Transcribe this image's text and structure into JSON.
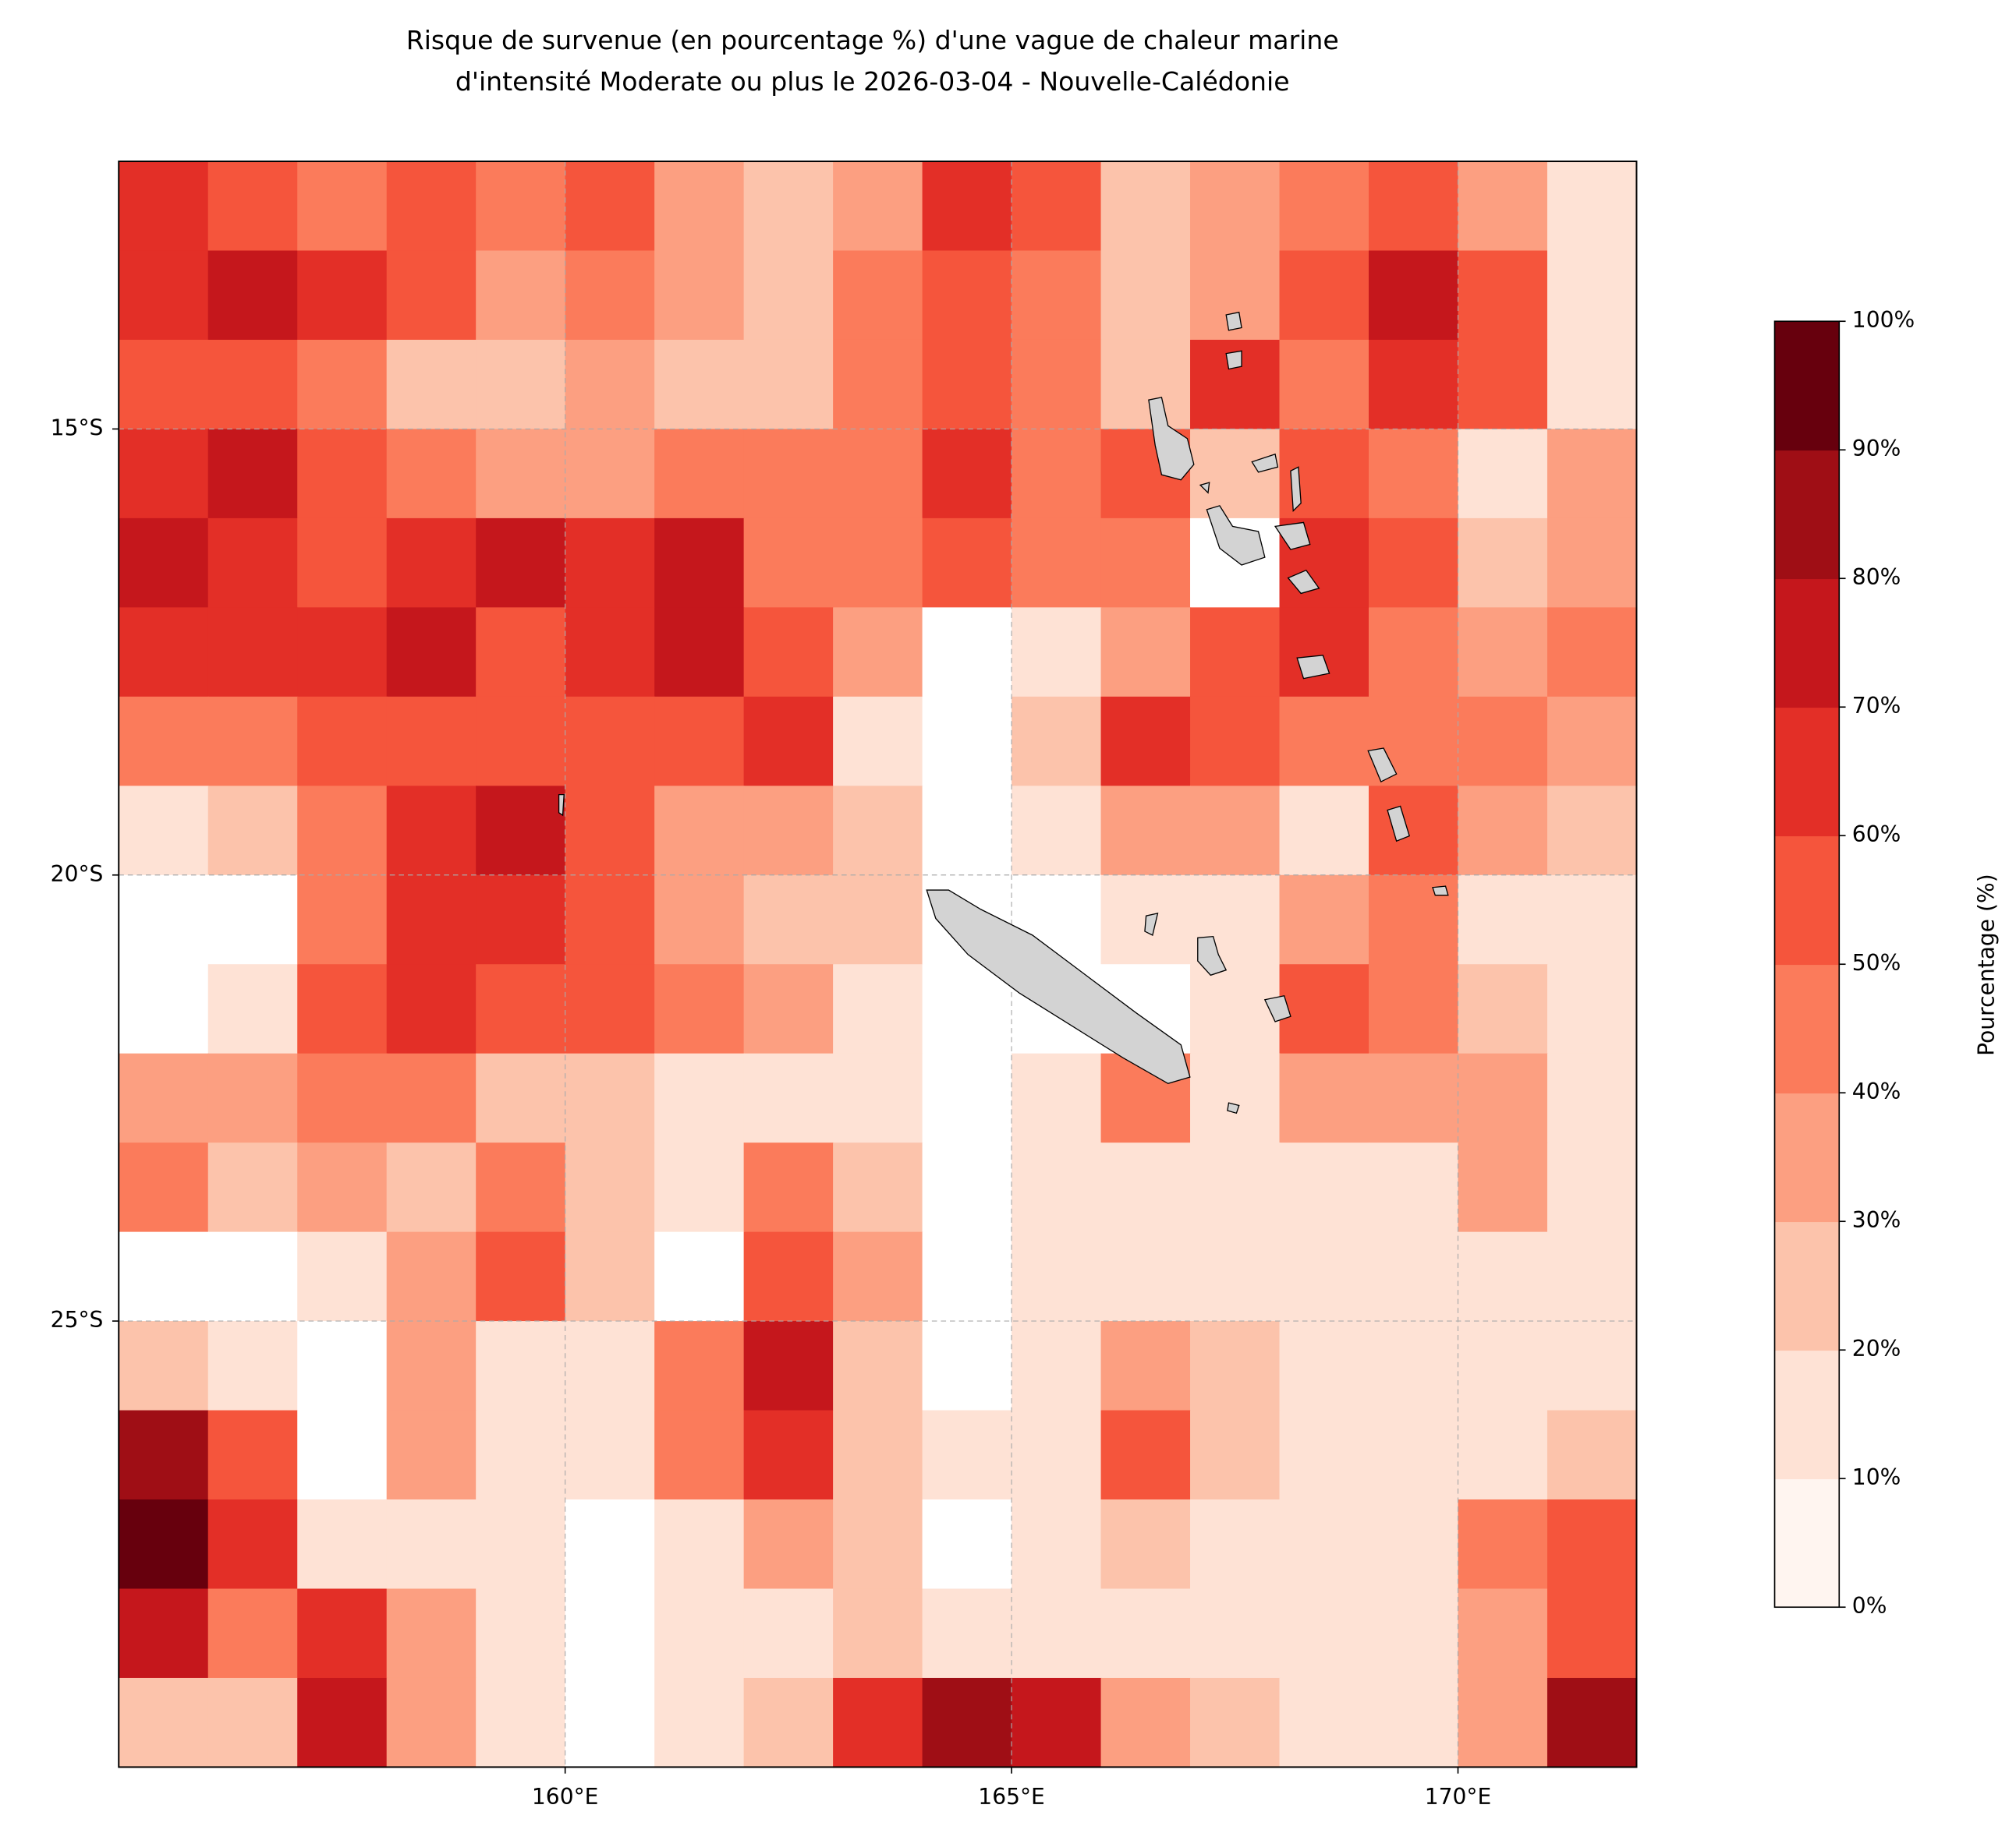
{
  "chart_data": {
    "type": "heatmap",
    "title": [
      "Risque de survenue (en pourcentage %) d'une vague de chaleur marine",
      "d'intensité Moderate ou plus le 2026-03-04 - Nouvelle-Calédonie"
    ],
    "xlim": [
      155,
      172
    ],
    "ylim": [
      -30,
      -12
    ],
    "xticks": [
      {
        "value": 160,
        "label": "160°E"
      },
      {
        "value": 165,
        "label": "165°E"
      },
      {
        "value": 170,
        "label": "170°E"
      }
    ],
    "yticks": [
      {
        "value": -15,
        "label": "15°S"
      },
      {
        "value": -20,
        "label": "20°S"
      },
      {
        "value": -25,
        "label": "25°S"
      }
    ],
    "grid": true,
    "values": [
      [
        60,
        50,
        40,
        50,
        40,
        50,
        30,
        20,
        30,
        60,
        50,
        20,
        30,
        40,
        50,
        30,
        10
      ],
      [
        60,
        70,
        60,
        50,
        30,
        40,
        30,
        20,
        40,
        50,
        40,
        20,
        30,
        50,
        70,
        50,
        10
      ],
      [
        50,
        50,
        40,
        20,
        20,
        30,
        20,
        20,
        40,
        50,
        40,
        20,
        60,
        40,
        60,
        50,
        10
      ],
      [
        60,
        70,
        50,
        40,
        30,
        30,
        40,
        40,
        40,
        60,
        40,
        50,
        20,
        50,
        40,
        10,
        30
      ],
      [
        70,
        60,
        50,
        60,
        70,
        60,
        70,
        40,
        40,
        50,
        40,
        40,
        0,
        60,
        50,
        20,
        30
      ],
      [
        60,
        60,
        60,
        70,
        50,
        60,
        70,
        50,
        30,
        0,
        10,
        30,
        50,
        60,
        40,
        30,
        40
      ],
      [
        40,
        40,
        50,
        50,
        50,
        50,
        50,
        60,
        10,
        0,
        20,
        60,
        50,
        40,
        40,
        40,
        30
      ],
      [
        10,
        20,
        40,
        60,
        70,
        50,
        30,
        30,
        20,
        0,
        10,
        30,
        30,
        10,
        50,
        30,
        20
      ],
      [
        0,
        0,
        40,
        60,
        60,
        50,
        30,
        20,
        20,
        0,
        0,
        10,
        10,
        30,
        40,
        10,
        10
      ],
      [
        0,
        10,
        50,
        60,
        50,
        50,
        40,
        30,
        10,
        0,
        0,
        0,
        10,
        50,
        40,
        20,
        10
      ],
      [
        30,
        30,
        40,
        40,
        20,
        20,
        10,
        10,
        10,
        0,
        10,
        40,
        10,
        30,
        30,
        30,
        10
      ],
      [
        40,
        20,
        30,
        20,
        40,
        20,
        10,
        40,
        20,
        0,
        10,
        10,
        10,
        10,
        10,
        30,
        10
      ],
      [
        0,
        0,
        10,
        30,
        50,
        20,
        0,
        50,
        30,
        0,
        10,
        10,
        10,
        10,
        10,
        10,
        10
      ],
      [
        20,
        10,
        0,
        30,
        10,
        10,
        40,
        70,
        20,
        0,
        10,
        30,
        20,
        10,
        10,
        10,
        10
      ],
      [
        80,
        50,
        0,
        30,
        10,
        10,
        40,
        60,
        20,
        10,
        10,
        50,
        20,
        10,
        10,
        10,
        20
      ],
      [
        90,
        60,
        10,
        10,
        10,
        0,
        10,
        30,
        20,
        0,
        10,
        20,
        10,
        10,
        10,
        40,
        50
      ],
      [
        70,
        40,
        60,
        30,
        10,
        0,
        10,
        10,
        20,
        10,
        10,
        10,
        10,
        10,
        10,
        30,
        50
      ],
      [
        20,
        20,
        70,
        30,
        10,
        0,
        10,
        20,
        60,
        80,
        70,
        30,
        20,
        10,
        10,
        30,
        80
      ]
    ],
    "colorbar": {
      "label": "Pourcentage (%)",
      "clim": [
        0,
        100
      ],
      "colors": [
        "#fff5f0",
        "#fee2d5",
        "#fcc3ab",
        "#fc9f81",
        "#fb7b5b",
        "#f5553c",
        "#e32f27",
        "#c5171c",
        "#9f0e15",
        "#67000d"
      ],
      "ticks": [
        {
          "value": 0,
          "label": "0%"
        },
        {
          "value": 10,
          "label": "10%"
        },
        {
          "value": 20,
          "label": "20%"
        },
        {
          "value": 30,
          "label": "30%"
        },
        {
          "value": 40,
          "label": "40%"
        },
        {
          "value": 50,
          "label": "50%"
        },
        {
          "value": 60,
          "label": "60%"
        },
        {
          "value": 70,
          "label": "70%"
        },
        {
          "value": 80,
          "label": "80%"
        },
        {
          "value": 90,
          "label": "90%"
        },
        {
          "value": 100,
          "label": "100%"
        }
      ]
    }
  }
}
